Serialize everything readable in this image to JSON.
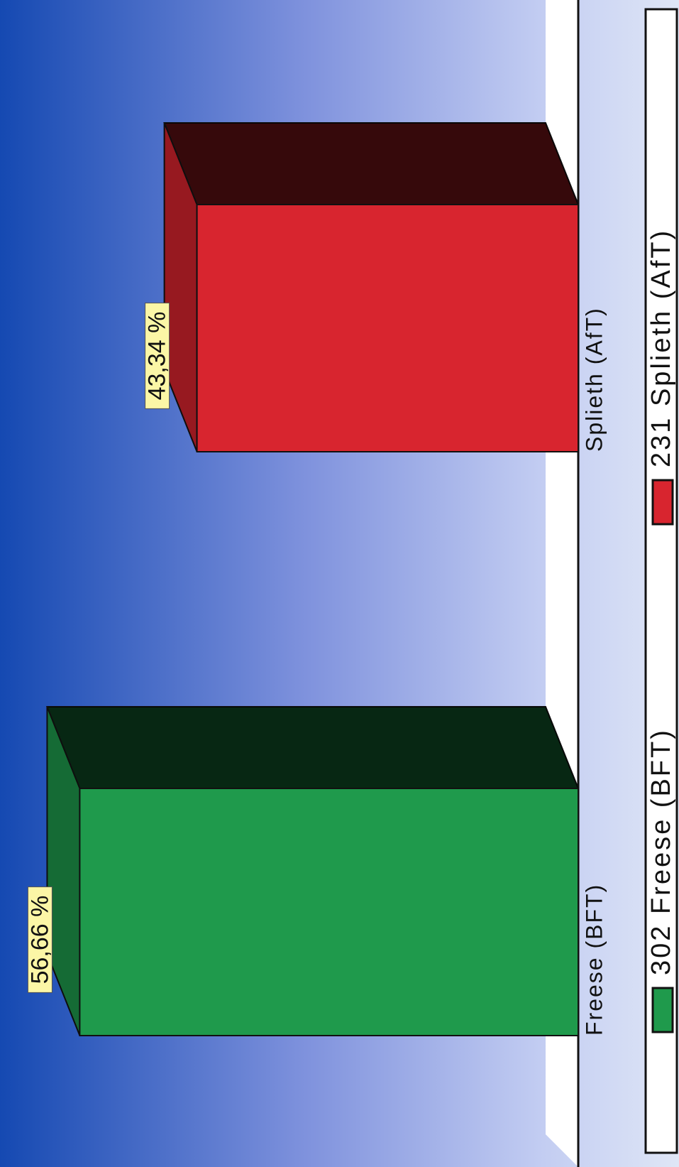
{
  "chart_data": {
    "type": "bar3d",
    "categories": [
      "Freese (BFT)",
      "Splieth (AfT)"
    ],
    "series": [
      {
        "name": "302 Freese (BFT)",
        "color": "#1f9a4c",
        "values": [
          56.66,
          null
        ],
        "value_labels": [
          "56,66 %",
          null
        ]
      },
      {
        "name": "231 Splieth (AfT)",
        "color": "#d8252f",
        "values": [
          null,
          43.34
        ],
        "value_labels": [
          null,
          "43,34 %"
        ]
      }
    ],
    "ylim": [
      0,
      60
    ]
  }
}
